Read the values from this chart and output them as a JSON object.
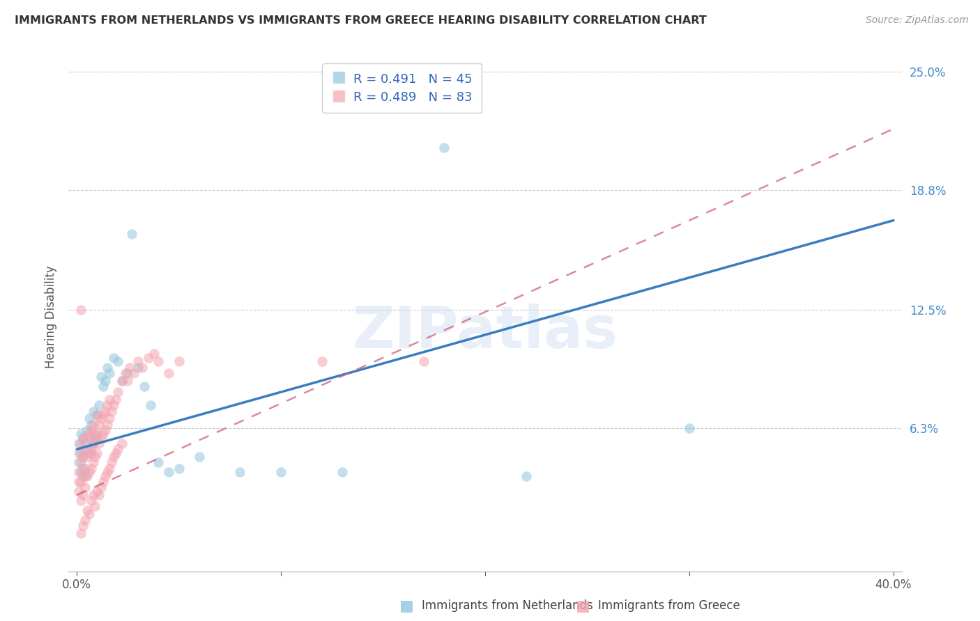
{
  "title": "IMMIGRANTS FROM NETHERLANDS VS IMMIGRANTS FROM GREECE HEARING DISABILITY CORRELATION CHART",
  "source": "Source: ZipAtlas.com",
  "ylabel": "Hearing Disability",
  "xlim": [
    0.0,
    0.4
  ],
  "ylim": [
    0.0,
    0.25
  ],
  "xticks": [
    0.0,
    0.1,
    0.2,
    0.3,
    0.4
  ],
  "xtick_labels": [
    "0.0%",
    "",
    "",
    "",
    "40.0%"
  ],
  "ytick_labels_right": [
    "6.3%",
    "12.5%",
    "18.8%",
    "25.0%"
  ],
  "ytick_vals_right": [
    0.063,
    0.125,
    0.188,
    0.25
  ],
  "blue_R": 0.491,
  "blue_N": 45,
  "pink_R": 0.489,
  "pink_N": 83,
  "blue_color": "#92c5de",
  "pink_color": "#f4a4b0",
  "blue_line_color": "#3a7dbf",
  "pink_line_color": "#d06080",
  "watermark_text": "ZIPatlas",
  "blue_line_x0": 0.0,
  "blue_line_y0": 0.052,
  "blue_line_x1": 0.4,
  "blue_line_y1": 0.172,
  "pink_line_x0": 0.0,
  "pink_line_y0": 0.028,
  "pink_line_x1": 0.4,
  "pink_line_y1": 0.22,
  "blue_pts_x": [
    0.001,
    0.001,
    0.002,
    0.002,
    0.002,
    0.003,
    0.003,
    0.003,
    0.004,
    0.004,
    0.005,
    0.005,
    0.006,
    0.006,
    0.007,
    0.007,
    0.008,
    0.008,
    0.009,
    0.01,
    0.01,
    0.011,
    0.012,
    0.013,
    0.014,
    0.015,
    0.016,
    0.018,
    0.02,
    0.022,
    0.025,
    0.027,
    0.03,
    0.033,
    0.036,
    0.04,
    0.045,
    0.05,
    0.06,
    0.08,
    0.1,
    0.13,
    0.18,
    0.22,
    0.3
  ],
  "blue_pts_y": [
    0.045,
    0.055,
    0.04,
    0.05,
    0.06,
    0.042,
    0.048,
    0.058,
    0.038,
    0.055,
    0.052,
    0.062,
    0.058,
    0.068,
    0.05,
    0.065,
    0.055,
    0.072,
    0.06,
    0.07,
    0.058,
    0.075,
    0.09,
    0.085,
    0.088,
    0.095,
    0.092,
    0.1,
    0.098,
    0.088,
    0.092,
    0.165,
    0.095,
    0.085,
    0.075,
    0.045,
    0.04,
    0.042,
    0.048,
    0.04,
    0.04,
    0.04,
    0.21,
    0.038,
    0.063
  ],
  "pink_pts_x": [
    0.001,
    0.001,
    0.001,
    0.001,
    0.002,
    0.002,
    0.002,
    0.002,
    0.003,
    0.003,
    0.003,
    0.003,
    0.004,
    0.004,
    0.004,
    0.005,
    0.005,
    0.005,
    0.006,
    0.006,
    0.006,
    0.007,
    0.007,
    0.007,
    0.008,
    0.008,
    0.008,
    0.009,
    0.009,
    0.01,
    0.01,
    0.01,
    0.011,
    0.011,
    0.012,
    0.012,
    0.013,
    0.013,
    0.014,
    0.014,
    0.015,
    0.015,
    0.016,
    0.016,
    0.017,
    0.018,
    0.019,
    0.02,
    0.022,
    0.024,
    0.025,
    0.026,
    0.028,
    0.03,
    0.032,
    0.035,
    0.038,
    0.04,
    0.045,
    0.05,
    0.002,
    0.003,
    0.004,
    0.005,
    0.006,
    0.007,
    0.008,
    0.009,
    0.01,
    0.011,
    0.012,
    0.013,
    0.014,
    0.015,
    0.016,
    0.017,
    0.018,
    0.019,
    0.02,
    0.022,
    0.002,
    0.12,
    0.17
  ],
  "pink_pts_y": [
    0.03,
    0.035,
    0.04,
    0.05,
    0.025,
    0.035,
    0.045,
    0.055,
    0.028,
    0.038,
    0.048,
    0.058,
    0.032,
    0.042,
    0.052,
    0.038,
    0.048,
    0.058,
    0.04,
    0.05,
    0.06,
    0.042,
    0.052,
    0.062,
    0.045,
    0.055,
    0.065,
    0.048,
    0.058,
    0.05,
    0.06,
    0.07,
    0.055,
    0.065,
    0.058,
    0.068,
    0.06,
    0.07,
    0.062,
    0.072,
    0.065,
    0.075,
    0.068,
    0.078,
    0.072,
    0.075,
    0.078,
    0.082,
    0.088,
    0.092,
    0.088,
    0.095,
    0.092,
    0.098,
    0.095,
    0.1,
    0.102,
    0.098,
    0.092,
    0.098,
    0.008,
    0.012,
    0.015,
    0.02,
    0.018,
    0.025,
    0.028,
    0.022,
    0.03,
    0.028,
    0.032,
    0.035,
    0.038,
    0.04,
    0.042,
    0.045,
    0.048,
    0.05,
    0.052,
    0.055,
    0.125,
    0.098,
    0.098
  ]
}
